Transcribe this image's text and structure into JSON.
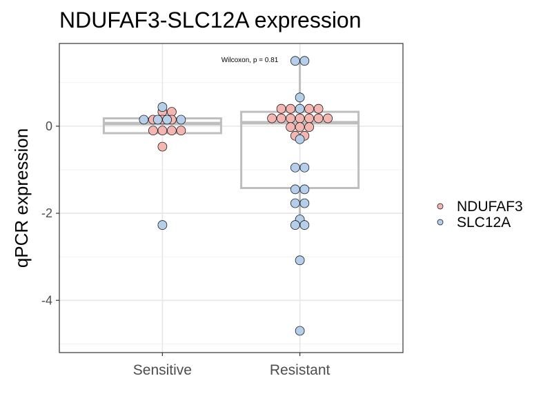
{
  "chart_data": {
    "type": "box-dot",
    "title": "NDUFAF3-SLC12A expression",
    "xlabel": "",
    "ylabel": "qPCR expression",
    "categories": [
      "Sensitive",
      "Resistant"
    ],
    "ylim": [
      -5.2,
      1.9
    ],
    "yticks": [
      -4,
      -2,
      0
    ],
    "ytick_labels": [
      "-4",
      "-2",
      "0"
    ],
    "grid": true,
    "legend_position": "right",
    "annotation": "Wilcoxon, p = 0.81",
    "boxes": [
      {
        "category": "Sensitive",
        "q1": -0.16,
        "median": 0.06,
        "q3": 0.18,
        "whisker_low": -0.16,
        "whisker_high": 0.18
      },
      {
        "category": "Resistant",
        "q1": -1.42,
        "median": 0.08,
        "q3": 0.33,
        "whisker_low": -2.26,
        "whisker_high": 1.5
      }
    ],
    "series": [
      {
        "name": "NDUFAF3",
        "color": "#F4B6B1",
        "points": [
          {
            "category": "Sensitive",
            "y": 0.33,
            "dx": 0
          },
          {
            "category": "Sensitive",
            "y": 0.33,
            "dx": 1
          },
          {
            "category": "Sensitive",
            "y": 0.15,
            "dx": -1
          },
          {
            "category": "Sensitive",
            "y": 0.15,
            "dx": 0
          },
          {
            "category": "Sensitive",
            "y": 0.15,
            "dx": 1
          },
          {
            "category": "Sensitive",
            "y": -0.1,
            "dx": -1
          },
          {
            "category": "Sensitive",
            "y": -0.1,
            "dx": 0
          },
          {
            "category": "Sensitive",
            "y": -0.1,
            "dx": 1
          },
          {
            "category": "Sensitive",
            "y": -0.1,
            "dx": 2
          },
          {
            "category": "Sensitive",
            "y": -0.47,
            "dx": 0
          },
          {
            "category": "Resistant",
            "y": 0.4,
            "dx": -2
          },
          {
            "category": "Resistant",
            "y": 0.4,
            "dx": -1
          },
          {
            "category": "Resistant",
            "y": 0.4,
            "dx": 1
          },
          {
            "category": "Resistant",
            "y": 0.4,
            "dx": 2
          },
          {
            "category": "Resistant",
            "y": 0.18,
            "dx": -3
          },
          {
            "category": "Resistant",
            "y": 0.18,
            "dx": -2
          },
          {
            "category": "Resistant",
            "y": 0.18,
            "dx": -1
          },
          {
            "category": "Resistant",
            "y": 0.18,
            "dx": 0
          },
          {
            "category": "Resistant",
            "y": 0.18,
            "dx": 1
          },
          {
            "category": "Resistant",
            "y": 0.18,
            "dx": 2
          },
          {
            "category": "Resistant",
            "y": 0.18,
            "dx": 3
          },
          {
            "category": "Resistant",
            "y": -0.02,
            "dx": -1
          },
          {
            "category": "Resistant",
            "y": -0.02,
            "dx": 0
          },
          {
            "category": "Resistant",
            "y": -0.02,
            "dx": 1
          },
          {
            "category": "Resistant",
            "y": -0.22,
            "dx": -0.5
          },
          {
            "category": "Resistant",
            "y": -0.22,
            "dx": 0.5
          }
        ]
      },
      {
        "name": "SLC12A",
        "color": "#B5CFEA",
        "points": [
          {
            "category": "Sensitive",
            "y": 0.44,
            "dx": 0
          },
          {
            "category": "Sensitive",
            "y": 0.15,
            "dx": -2
          },
          {
            "category": "Sensitive",
            "y": 0.15,
            "dx": 2
          },
          {
            "category": "Sensitive",
            "y": 0.15,
            "dx": 0.5
          },
          {
            "category": "Sensitive",
            "y": 0.15,
            "dx": -0.5
          },
          {
            "category": "Sensitive",
            "y": -2.27,
            "dx": 0
          },
          {
            "category": "Resistant",
            "y": 1.5,
            "dx": -0.5
          },
          {
            "category": "Resistant",
            "y": 1.5,
            "dx": 0.5
          },
          {
            "category": "Resistant",
            "y": 0.66,
            "dx": 0
          },
          {
            "category": "Resistant",
            "y": 0.4,
            "dx": 0
          },
          {
            "category": "Resistant",
            "y": -0.3,
            "dx": 0
          },
          {
            "category": "Resistant",
            "y": -0.95,
            "dx": -0.5
          },
          {
            "category": "Resistant",
            "y": -0.95,
            "dx": 0.5
          },
          {
            "category": "Resistant",
            "y": -1.45,
            "dx": -0.5
          },
          {
            "category": "Resistant",
            "y": -1.45,
            "dx": 0.5
          },
          {
            "category": "Resistant",
            "y": -1.77,
            "dx": -0.5
          },
          {
            "category": "Resistant",
            "y": -1.77,
            "dx": 0.5
          },
          {
            "category": "Resistant",
            "y": -2.14,
            "dx": 0
          },
          {
            "category": "Resistant",
            "y": -2.27,
            "dx": -0.5
          },
          {
            "category": "Resistant",
            "y": -2.27,
            "dx": 0.5
          },
          {
            "category": "Resistant",
            "y": -3.08,
            "dx": 0
          },
          {
            "category": "Resistant",
            "y": -4.7,
            "dx": 0
          }
        ]
      }
    ]
  }
}
